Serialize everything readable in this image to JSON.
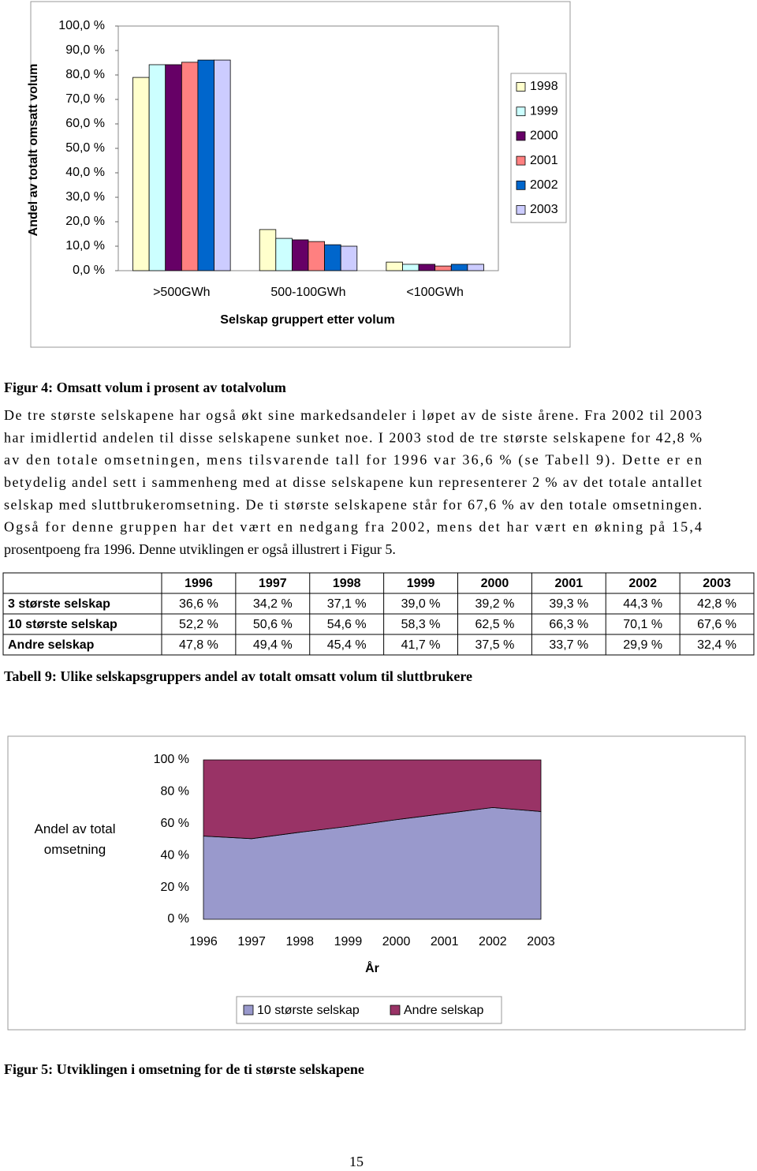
{
  "chart_data": [
    {
      "type": "bar",
      "y_label": "Andel av totalt omsatt volum",
      "x_label": "Selskap gruppert etter volum",
      "categories": [
        ">500GWh",
        "500-100GWh",
        "<100GWh"
      ],
      "series": [
        {
          "name": "1998",
          "color": "#ffffcc",
          "values": [
            79.0,
            16.8,
            3.5
          ]
        },
        {
          "name": "1999",
          "color": "#ccffff",
          "values": [
            84.2,
            13.2,
            2.6
          ]
        },
        {
          "name": "2000",
          "color": "#660066",
          "values": [
            84.2,
            12.6,
            2.6
          ]
        },
        {
          "name": "2001",
          "color": "#ff8080",
          "values": [
            85.2,
            11.9,
            1.9
          ]
        },
        {
          "name": "2002",
          "color": "#0066cc",
          "values": [
            86.1,
            10.6,
            2.6
          ]
        },
        {
          "name": "2003",
          "color": "#ccccff",
          "values": [
            86.1,
            10.0,
            2.6
          ]
        }
      ],
      "ylim": [
        0,
        100
      ],
      "yticks": [
        {
          "value": 0,
          "label": "0,0 %"
        },
        {
          "value": 10,
          "label": "10,0 %"
        },
        {
          "value": 20,
          "label": "20,0 %"
        },
        {
          "value": 30,
          "label": "30,0 %"
        },
        {
          "value": 40,
          "label": "40,0 %"
        },
        {
          "value": 50,
          "label": "50,0 %"
        },
        {
          "value": 60,
          "label": "60,0 %"
        },
        {
          "value": 70,
          "label": "70,0 %"
        },
        {
          "value": 80,
          "label": "80,0 %"
        },
        {
          "value": 90,
          "label": "90,0 %"
        },
        {
          "value": 100,
          "label": "100,0 %"
        }
      ],
      "grid": false,
      "legend": "right"
    },
    {
      "type": "stacked-area",
      "y_label": "Andel av total omsetning",
      "x_label": "År",
      "categories": [
        "1996",
        "1997",
        "1998",
        "1999",
        "2000",
        "2001",
        "2002",
        "2003"
      ],
      "series": [
        {
          "name": "10 største selskap",
          "color": "#9999cc",
          "values": [
            52.2,
            50.6,
            54.6,
            58.3,
            62.5,
            66.3,
            70.1,
            67.6
          ]
        },
        {
          "name": "Andre selskap",
          "color": "#993366",
          "values": [
            47.8,
            49.4,
            45.4,
            41.7,
            37.5,
            33.7,
            29.9,
            32.4
          ]
        }
      ],
      "ylim": [
        0,
        100
      ],
      "yticks": [
        {
          "value": 0,
          "label": "0 %"
        },
        {
          "value": 20,
          "label": "20 %"
        },
        {
          "value": 40,
          "label": "40 %"
        },
        {
          "value": 60,
          "label": "60 %"
        },
        {
          "value": 80,
          "label": "80 %"
        },
        {
          "value": 100,
          "label": "100 %"
        }
      ],
      "grid": false,
      "legend": "bottom"
    }
  ],
  "figure4_caption": "Figur 4: Omsatt volum i prosent av totalvolum",
  "paragraph": [
    "De tre største selskapene har også økt sine markedsandeler i løpet av de siste årene. Fra 2002 til 2003",
    "har imidlertid andelen til disse selskapene sunket noe. I 2003 stod de tre største selskapene for 42,8 %",
    "av den totale omsetningen, mens tilsvarende tall for 1996 var 36,6 % (se Tabell 9). Dette er en",
    "betydelig andel sett i sammenheng med at disse selskapene kun representerer 2 % av det totale antallet",
    "selskap med sluttbrukeromsetning. De ti største selskapene står for 67,6 % av den totale omsetningen.",
    "Også for denne gruppen har det vært en nedgang fra 2002, mens det har vært en økning på 15,4",
    "prosentpoeng fra 1996. Denne utviklingen er også illustrert i Figur 5."
  ],
  "table": {
    "columns": [
      "1996",
      "1997",
      "1998",
      "1999",
      "2000",
      "2001",
      "2002",
      "2003"
    ],
    "rows": [
      {
        "label": "3 største selskap",
        "values": [
          "36,6 %",
          "34,2 %",
          "37,1 %",
          "39,0 %",
          "39,2 %",
          "39,3 %",
          "44,3 %",
          "42,8 %"
        ]
      },
      {
        "label": "10 største selskap",
        "values": [
          "52,2 %",
          "50,6 %",
          "54,6 %",
          "58,3 %",
          "62,5 %",
          "66,3 %",
          "70,1 %",
          "67,6 %"
        ]
      },
      {
        "label": "Andre selskap",
        "values": [
          "47,8 %",
          "49,4 %",
          "45,4 %",
          "41,7 %",
          "37,5 %",
          "33,7 %",
          "29,9 %",
          "32,4 %"
        ]
      }
    ]
  },
  "table9_caption": "Tabell 9: Ulike selskapsgruppers andel av totalt omsatt volum til sluttbrukere",
  "figure5_caption": "Figur 5: Utviklingen i omsetning for de ti største selskapene",
  "page_number": "15"
}
